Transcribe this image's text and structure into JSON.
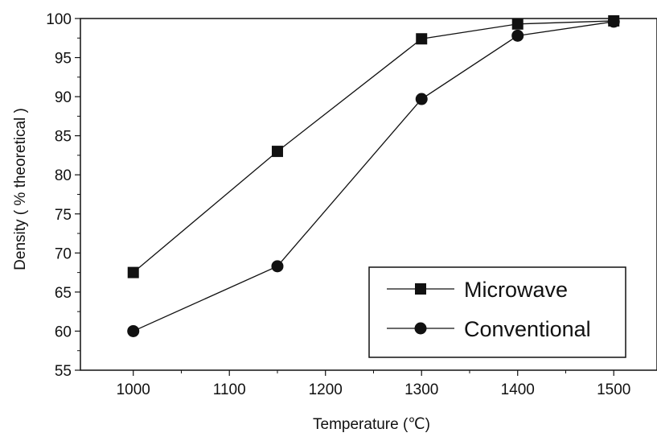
{
  "chart_data": {
    "type": "line",
    "xlabel": "Temperature (℃)",
    "ylabel": "Density ( % theoretical )",
    "xlim": [
      945,
      1545
    ],
    "ylim": [
      55,
      100
    ],
    "x_ticks": [
      1000,
      1100,
      1200,
      1300,
      1400,
      1500
    ],
    "x_tick_labels": [
      "1000",
      "1100",
      "1200",
      "1300",
      "1400",
      "1500"
    ],
    "y_ticks": [
      55,
      60,
      65,
      70,
      75,
      80,
      85,
      90,
      95,
      100
    ],
    "y_tick_labels": [
      "55",
      "60",
      "65",
      "70",
      "75",
      "80",
      "85",
      "90",
      "95",
      "100"
    ],
    "grid": false,
    "legend_position": "bottom-right",
    "series": [
      {
        "name": "Microwave",
        "marker": "square",
        "x": [
          1000,
          1150,
          1300,
          1400,
          1500
        ],
        "y": [
          67.5,
          83.0,
          97.4,
          99.3,
          99.7
        ]
      },
      {
        "name": "Conventional",
        "marker": "circle",
        "x": [
          1000,
          1150,
          1300,
          1400,
          1500
        ],
        "y": [
          60.0,
          68.3,
          89.7,
          97.8,
          99.6
        ]
      }
    ]
  }
}
